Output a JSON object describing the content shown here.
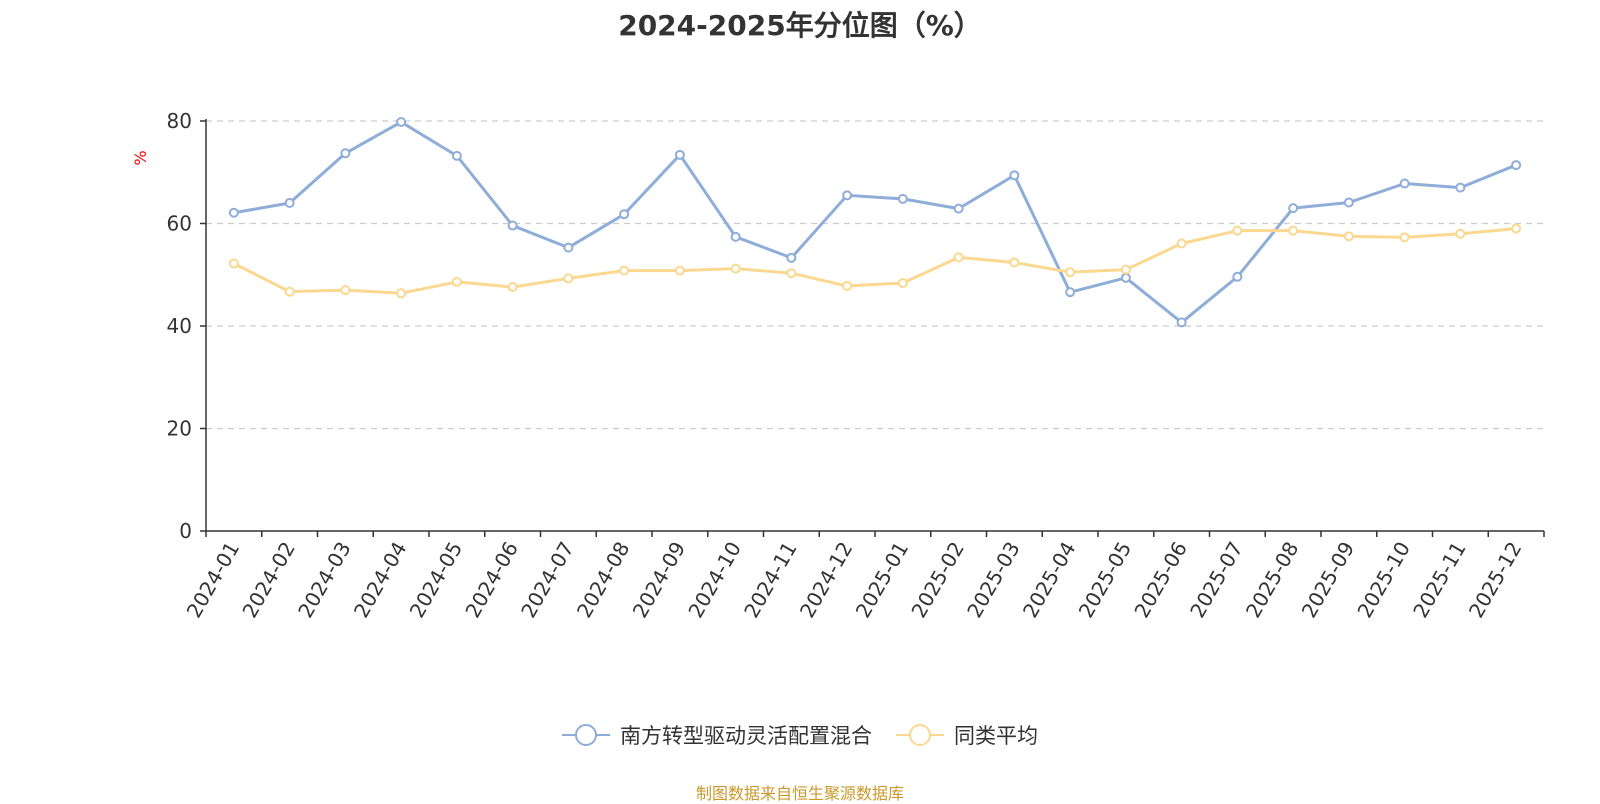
{
  "chart_data": {
    "type": "line",
    "title": "2024-2025年分位图（%）",
    "ylabel": "%",
    "xlabel": "",
    "ylim": [
      0,
      80
    ],
    "yticks": [
      0,
      20,
      40,
      60,
      80
    ],
    "grid": true,
    "legend_position": "bottom",
    "categories": [
      "2024-01",
      "2024-02",
      "2024-03",
      "2024-04",
      "2024-05",
      "2024-06",
      "2024-07",
      "2024-08",
      "2024-09",
      "2024-10",
      "2024-11",
      "2024-12",
      "2025-01",
      "2025-02",
      "2025-03",
      "2025-04",
      "2025-05",
      "2025-06",
      "2025-07",
      "2025-08",
      "2025-09",
      "2025-10",
      "2025-11",
      "2025-12"
    ],
    "series": [
      {
        "name": "南方转型驱动灵活配置混合",
        "color": "#8eadd8",
        "values": [
          62.1,
          64.0,
          73.7,
          79.8,
          73.2,
          59.6,
          55.3,
          61.8,
          73.4,
          57.4,
          53.3,
          65.5,
          64.8,
          62.9,
          69.4,
          46.6,
          49.4,
          40.7,
          49.6,
          63.0,
          64.1,
          67.8,
          67.0,
          71.4
        ]
      },
      {
        "name": "同类平均",
        "color": "#fbd88f",
        "values": [
          52.2,
          46.7,
          47.0,
          46.4,
          48.6,
          47.6,
          49.3,
          50.8,
          50.8,
          51.2,
          50.3,
          47.8,
          48.4,
          53.4,
          52.4,
          50.5,
          51.0,
          56.1,
          58.6,
          58.6,
          57.5,
          57.3,
          58.0,
          59.0
        ]
      }
    ]
  },
  "footer": {
    "source": "制图数据来自恒生聚源数据库"
  }
}
